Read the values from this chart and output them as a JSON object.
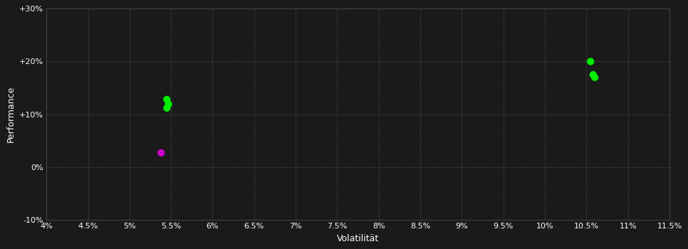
{
  "background_color": "#1a1a1a",
  "plot_bg_color": "#1a1a1a",
  "grid_color": "#555555",
  "text_color": "#ffffff",
  "xlabel": "Volatilität",
  "ylabel": "Performance",
  "xlim": [
    0.04,
    0.115
  ],
  "ylim": [
    -0.1,
    0.3
  ],
  "xticks": [
    0.04,
    0.045,
    0.05,
    0.055,
    0.06,
    0.065,
    0.07,
    0.075,
    0.08,
    0.085,
    0.09,
    0.095,
    0.1,
    0.105,
    0.11,
    0.115
  ],
  "yticks": [
    -0.1,
    0.0,
    0.1,
    0.2,
    0.3
  ],
  "ytick_labels": [
    "-10%",
    "0%",
    "+10%",
    "+20%",
    "+30%"
  ],
  "xtick_labels": [
    "4%",
    "4.5%",
    "5%",
    "5.5%",
    "6%",
    "6.5%",
    "7%",
    "7.5%",
    "8%",
    "8.5%",
    "9%",
    "9.5%",
    "10%",
    "10.5%",
    "11%",
    "11.5%"
  ],
  "points_green": [
    [
      0.0545,
      0.128
    ],
    [
      0.0547,
      0.119
    ],
    [
      0.0545,
      0.112
    ],
    [
      0.1055,
      0.2
    ],
    [
      0.1058,
      0.175
    ],
    [
      0.106,
      0.17
    ]
  ],
  "points_magenta": [
    [
      0.0538,
      0.027
    ]
  ],
  "green_color": "#00ee00",
  "magenta_color": "#cc00cc",
  "marker_size": 55,
  "font_size_ticks": 8,
  "font_size_labels": 9
}
